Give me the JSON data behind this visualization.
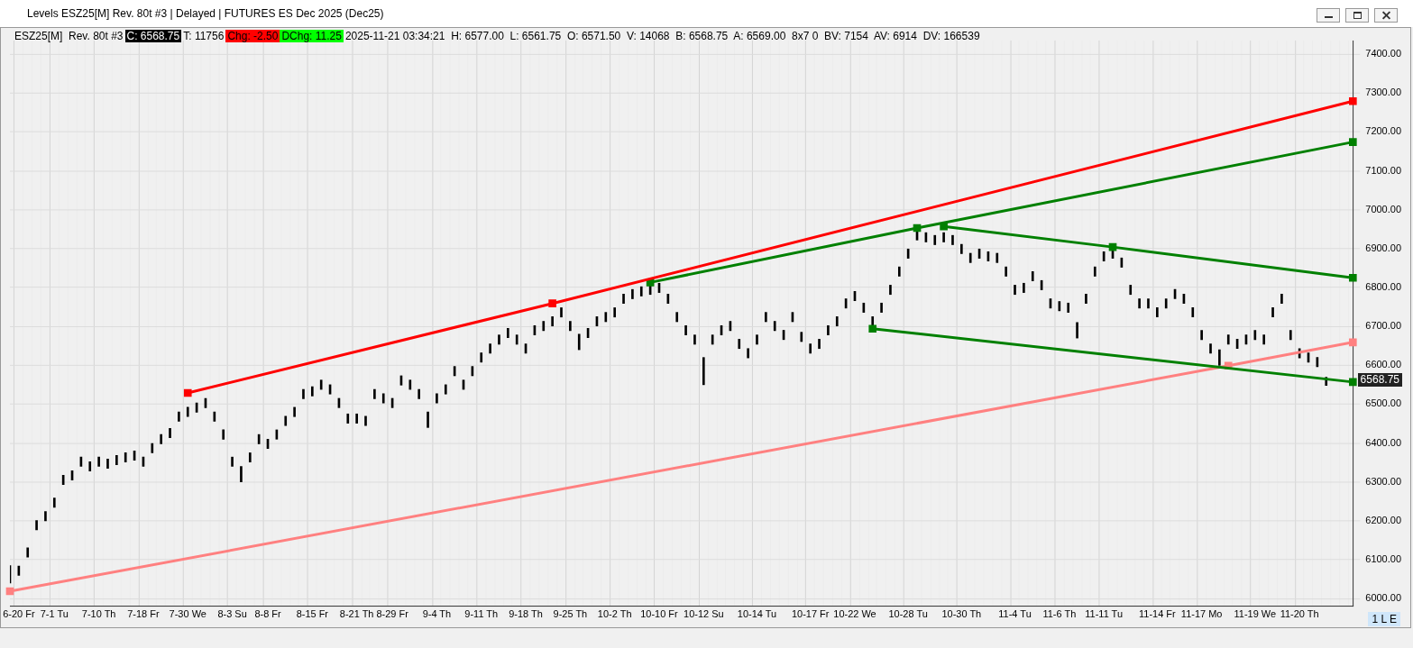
{
  "chart_data": {
    "type": "bar",
    "title": "Levels ESZ25[M]  Rev. 80t #3 | Delayed | FUTURES ES Dec 2025 (Dec25)",
    "annotations": [
      "ESZ25[M]  Rev. 80t #3",
      "C: 6568.75",
      "T: 11756",
      "Chg: -2.50",
      "DChg: 11.25",
      "2025-11-21 03:34:21  H: 6577.00  L: 6561.75  O: 6571.50  V: 14068  B: 6568.75  A: 6569.00  8x7 0  BV: 7154  AV: 6914  DV: 166539",
      "6568.75",
      "1 L E"
    ],
    "categories": [
      null,
      "6-20 Fr",
      null,
      null,
      null,
      "7-1 Tu",
      null,
      null,
      null,
      null,
      "7-10 Th",
      null,
      null,
      null,
      null,
      "7-18 Fr",
      null,
      null,
      null,
      null,
      "7-30 We",
      null,
      null,
      null,
      null,
      "8-3 Su",
      null,
      null,
      null,
      "8-8 Fr",
      null,
      null,
      null,
      null,
      "8-15 Fr",
      null,
      null,
      null,
      null,
      "8-21 Th",
      null,
      null,
      null,
      "8-29 Fr",
      null,
      null,
      null,
      null,
      "9-4 Th",
      null,
      null,
      null,
      null,
      "9-11 Th",
      null,
      null,
      null,
      null,
      "9-18 Th",
      null,
      null,
      null,
      null,
      "9-25 Th",
      null,
      null,
      null,
      null,
      "10-2 Th",
      null,
      null,
      null,
      null,
      "10-10 Fr",
      null,
      null,
      null,
      null,
      "10-12 Su",
      null,
      null,
      null,
      null,
      null,
      "10-14 Tu",
      null,
      null,
      null,
      null,
      null,
      "10-17 Fr",
      null,
      null,
      null,
      null,
      "10-22 We",
      null,
      null,
      null,
      null,
      null,
      "10-28 Tu",
      null,
      null,
      null,
      null,
      null,
      "10-30 Th",
      null,
      null,
      null,
      null,
      null,
      "11-4 Tu",
      null,
      null,
      null,
      null,
      "11-6 Th",
      null,
      null,
      null,
      null,
      "11-11 Tu",
      null,
      null,
      null,
      null,
      null,
      "11-14 Fr",
      null,
      null,
      null,
      null,
      "11-17 Mo",
      null,
      null,
      null,
      null,
      null,
      "11-19 We",
      null,
      null,
      null,
      null,
      "11-20 Th",
      null,
      null,
      null,
      null,
      null,
      null
    ],
    "series": [
      {
        "color": "#000000",
        "base": [
          6040,
          6060,
          6107,
          6177,
          6200,
          6235,
          6293,
          6305,
          6340,
          6328,
          6340,
          6335,
          6344,
          6351,
          6356,
          6340,
          6375,
          6398,
          6414,
          6456,
          6468,
          6479,
          6491,
          6456,
          6410,
          6340,
          6300,
          6351,
          6398,
          6386,
          6410,
          6445,
          6468,
          6514,
          6521,
          6538,
          6526,
          6491,
          6451,
          6451,
          6445,
          6514,
          6503,
          6491,
          6549,
          6538,
          6514,
          6440,
          6503,
          6526,
          6573,
          6538,
          6573,
          6608,
          6631,
          6654,
          6671,
          6654,
          6631,
          6678,
          6689,
          6701,
          6724,
          6689,
          6640,
          6671,
          6701,
          6712,
          6724,
          6759,
          6771,
          6778,
          6782,
          6787,
          6759,
          6712,
          6678,
          6654,
          6550,
          6654,
          6678,
          6689,
          6643,
          6619,
          6654,
          6712,
          6689,
          6666,
          6712,
          6661,
          6631,
          6643,
          6678,
          6701,
          6747,
          6766,
          6736,
          6701,
          6736,
          6782,
          6829,
          6875,
          6922,
          6917,
          6910,
          6917,
          6910,
          6887,
          6864,
          6875,
          6868,
          6864,
          6829,
          6782,
          6787,
          6817,
          6794,
          6747,
          6740,
          6736,
          6670,
          6759,
          6829,
          6868,
          6875,
          6852,
          6782,
          6747,
          6747,
          6724,
          6747,
          6771,
          6759,
          6724,
          6666,
          6631,
          6600,
          6654,
          6643,
          6654,
          6666,
          6654,
          6724,
          6759,
          6666,
          6619,
          6608,
          6596,
          6548,
          null,
          null,
          null
        ],
        "values": [
          45,
          24,
          24,
          24,
          24,
          24,
          24,
          24,
          24,
          24,
          24,
          24,
          24,
          24,
          24,
          24,
          24,
          24,
          24,
          24,
          24,
          24,
          24,
          24,
          24,
          24,
          40,
          24,
          24,
          24,
          24,
          24,
          24,
          24,
          24,
          24,
          24,
          24,
          24,
          24,
          24,
          24,
          24,
          24,
          24,
          24,
          24,
          40,
          24,
          24,
          24,
          24,
          24,
          24,
          24,
          24,
          24,
          24,
          24,
          24,
          24,
          24,
          24,
          24,
          40,
          24,
          24,
          24,
          24,
          24,
          24,
          24,
          24,
          24,
          24,
          24,
          24,
          24,
          70,
          24,
          24,
          24,
          24,
          24,
          24,
          24,
          24,
          24,
          24,
          24,
          24,
          24,
          24,
          24,
          24,
          24,
          24,
          24,
          24,
          24,
          24,
          24,
          24,
          24,
          24,
          24,
          24,
          24,
          24,
          24,
          24,
          24,
          24,
          24,
          24,
          24,
          24,
          24,
          24,
          24,
          40,
          24,
          24,
          24,
          24,
          24,
          24,
          24,
          24,
          24,
          24,
          24,
          24,
          24,
          24,
          24,
          40,
          24,
          24,
          24,
          24,
          24,
          24,
          24,
          24,
          24,
          24,
          24,
          21,
          null,
          null,
          null
        ]
      },
      {
        "type": "line",
        "color": "#ff0000",
        "marker": "square",
        "values": [
          null,
          null,
          null,
          null,
          null,
          null,
          null,
          null,
          null,
          null,
          null,
          null,
          null,
          null,
          null,
          null,
          null,
          null,
          null,
          null,
          6529,
          null,
          null,
          null,
          null,
          null,
          null,
          null,
          null,
          null,
          null,
          null,
          null,
          null,
          null,
          null,
          null,
          null,
          null,
          null,
          null,
          null,
          null,
          null,
          null,
          null,
          null,
          null,
          null,
          null,
          null,
          null,
          null,
          null,
          null,
          null,
          null,
          null,
          null,
          null,
          null,
          6759,
          null,
          null,
          null,
          null,
          null,
          null,
          null,
          null,
          null,
          null,
          null,
          null,
          null,
          null,
          null,
          null,
          null,
          null,
          null,
          null,
          null,
          null,
          null,
          null,
          null,
          null,
          null,
          null,
          null,
          null,
          null,
          null,
          null,
          null,
          null,
          null,
          null,
          null,
          null,
          null,
          null,
          null,
          null,
          null,
          null,
          null,
          null,
          null,
          null,
          null,
          null,
          null,
          null,
          null,
          null,
          null,
          null,
          null,
          null,
          null,
          null,
          null,
          null,
          null,
          null,
          null,
          null,
          null,
          null,
          null,
          null,
          null,
          null,
          null,
          null,
          null,
          null,
          null,
          null,
          null,
          null,
          null,
          null,
          null,
          null,
          null,
          null,
          null,
          null,
          7279
        ]
      },
      {
        "type": "line",
        "color": "#008000",
        "marker": "square",
        "values": [
          null,
          null,
          null,
          null,
          null,
          null,
          null,
          null,
          null,
          null,
          null,
          null,
          null,
          null,
          null,
          null,
          null,
          null,
          null,
          null,
          null,
          null,
          null,
          null,
          null,
          null,
          null,
          null,
          null,
          null,
          null,
          null,
          null,
          null,
          null,
          null,
          null,
          null,
          null,
          null,
          null,
          null,
          null,
          null,
          null,
          null,
          null,
          null,
          null,
          null,
          null,
          null,
          null,
          null,
          null,
          null,
          null,
          null,
          null,
          null,
          null,
          null,
          null,
          null,
          null,
          null,
          null,
          null,
          null,
          null,
          null,
          null,
          6813,
          null,
          null,
          null,
          null,
          null,
          null,
          null,
          null,
          null,
          null,
          null,
          null,
          null,
          null,
          null,
          null,
          null,
          null,
          null,
          null,
          null,
          null,
          null,
          null,
          null,
          null,
          null,
          null,
          null,
          6953,
          null,
          null,
          null,
          null,
          null,
          null,
          null,
          null,
          null,
          null,
          null,
          null,
          null,
          null,
          null,
          null,
          null,
          null,
          null,
          null,
          null,
          null,
          null,
          null,
          null,
          null,
          null,
          null,
          null,
          null,
          null,
          null,
          null,
          null,
          null,
          null,
          null,
          null,
          null,
          null,
          null,
          null,
          null,
          null,
          null,
          null,
          null,
          null,
          7174
        ]
      },
      {
        "type": "line",
        "color": "#008000",
        "marker": "square",
        "values": [
          null,
          null,
          null,
          null,
          null,
          null,
          null,
          null,
          null,
          null,
          null,
          null,
          null,
          null,
          null,
          null,
          null,
          null,
          null,
          null,
          null,
          null,
          null,
          null,
          null,
          null,
          null,
          null,
          null,
          null,
          null,
          null,
          null,
          null,
          null,
          null,
          null,
          null,
          null,
          null,
          null,
          null,
          null,
          null,
          null,
          null,
          null,
          null,
          null,
          null,
          null,
          null,
          null,
          null,
          null,
          null,
          null,
          null,
          null,
          null,
          null,
          null,
          null,
          null,
          null,
          null,
          null,
          null,
          null,
          null,
          null,
          null,
          null,
          null,
          null,
          null,
          null,
          null,
          null,
          null,
          null,
          null,
          null,
          null,
          null,
          null,
          null,
          null,
          null,
          null,
          null,
          null,
          null,
          null,
          null,
          null,
          null,
          null,
          null,
          null,
          null,
          null,
          null,
          null,
          null,
          6957,
          null,
          null,
          null,
          null,
          null,
          null,
          null,
          null,
          null,
          null,
          null,
          null,
          null,
          null,
          null,
          null,
          null,
          null,
          6904,
          null,
          null,
          null,
          null,
          null,
          null,
          null,
          null,
          null,
          null,
          null,
          null,
          null,
          null,
          null,
          null,
          null,
          null,
          null,
          null,
          null,
          null,
          null,
          null,
          null,
          null,
          6825
        ]
      },
      {
        "type": "line",
        "color": "#008000",
        "marker": "square",
        "values": [
          null,
          null,
          null,
          null,
          null,
          null,
          null,
          null,
          null,
          null,
          null,
          null,
          null,
          null,
          null,
          null,
          null,
          null,
          null,
          null,
          null,
          null,
          null,
          null,
          null,
          null,
          null,
          null,
          null,
          null,
          null,
          null,
          null,
          null,
          null,
          null,
          null,
          null,
          null,
          null,
          null,
          null,
          null,
          null,
          null,
          null,
          null,
          null,
          null,
          null,
          null,
          null,
          null,
          null,
          null,
          null,
          null,
          null,
          null,
          null,
          null,
          null,
          null,
          null,
          null,
          null,
          null,
          null,
          null,
          null,
          null,
          null,
          null,
          null,
          null,
          null,
          null,
          null,
          null,
          null,
          null,
          null,
          null,
          null,
          null,
          null,
          null,
          null,
          null,
          null,
          null,
          null,
          null,
          null,
          null,
          null,
          null,
          6694,
          null,
          null,
          null,
          null,
          null,
          null,
          null,
          null,
          null,
          null,
          null,
          null,
          null,
          null,
          null,
          null,
          null,
          null,
          null,
          null,
          null,
          null,
          null,
          null,
          null,
          null,
          null,
          null,
          null,
          null,
          null,
          null,
          null,
          null,
          null,
          null,
          null,
          null,
          null,
          null,
          null,
          null,
          null,
          null,
          null,
          null,
          null,
          null,
          null,
          null,
          null,
          null,
          null,
          6557
        ]
      },
      {
        "type": "line",
        "color": "#ff8080",
        "marker": "square",
        "values": [
          6019,
          null,
          null,
          null,
          null,
          null,
          null,
          null,
          null,
          null,
          null,
          null,
          null,
          null,
          null,
          null,
          null,
          null,
          null,
          null,
          null,
          null,
          null,
          null,
          null,
          null,
          null,
          null,
          null,
          null,
          null,
          null,
          null,
          null,
          null,
          null,
          null,
          null,
          null,
          null,
          null,
          null,
          null,
          null,
          null,
          null,
          null,
          null,
          null,
          null,
          null,
          null,
          null,
          null,
          null,
          null,
          null,
          null,
          null,
          null,
          null,
          null,
          null,
          null,
          null,
          null,
          null,
          null,
          null,
          null,
          null,
          null,
          null,
          null,
          null,
          null,
          null,
          null,
          null,
          null,
          null,
          null,
          null,
          null,
          null,
          null,
          null,
          null,
          null,
          null,
          null,
          null,
          null,
          null,
          null,
          null,
          null,
          null,
          null,
          null,
          null,
          null,
          null,
          null,
          null,
          null,
          null,
          null,
          null,
          null,
          null,
          null,
          null,
          null,
          null,
          null,
          null,
          null,
          null,
          null,
          null,
          null,
          null,
          null,
          null,
          null,
          null,
          null,
          null,
          null,
          null,
          null,
          null,
          null,
          null,
          null,
          null,
          6599,
          null,
          null,
          null,
          null,
          null,
          null,
          null,
          null,
          null,
          null,
          null,
          null,
          null,
          6659
        ]
      }
    ],
    "ylim": [
      5980,
      7435
    ],
    "yticks": [
      {
        "value": 6000,
        "label": "6000.00"
      },
      {
        "value": 6100,
        "label": "6100.00"
      },
      {
        "value": 6200,
        "label": "6200.00"
      },
      {
        "value": 6300,
        "label": "6300.00"
      },
      {
        "value": 6400,
        "label": "6400.00"
      },
      {
        "value": 6500,
        "label": "6500.00"
      },
      {
        "value": 6600,
        "label": "6600.00"
      },
      {
        "value": 6700,
        "label": "6700.00"
      },
      {
        "value": 6800,
        "label": "6800.00"
      },
      {
        "value": 6900,
        "label": "6900.00"
      },
      {
        "value": 7000,
        "label": "7000.00"
      },
      {
        "value": 7100,
        "label": "7100.00"
      },
      {
        "value": 7200,
        "label": "7200.00"
      },
      {
        "value": 7300,
        "label": "7300.00"
      },
      {
        "value": 7400,
        "label": "7400.00"
      }
    ],
    "grid": true,
    "legend": false
  }
}
